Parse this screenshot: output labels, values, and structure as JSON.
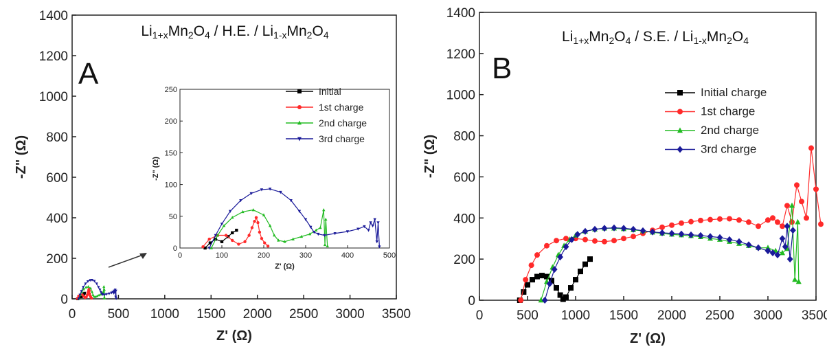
{
  "chart_data": [
    {
      "panel_label": "A",
      "type": "line",
      "title_parts": [
        "Li",
        "1+x",
        "Mn",
        "2",
        "O",
        "4",
        " / H.E. / Li",
        "1-x",
        "Mn",
        "2",
        "O",
        "4"
      ],
      "xlabel": "Z' (Ω)",
      "ylabel": "-Z\" (Ω)",
      "xlim": [
        0,
        3500
      ],
      "ylim": [
        0,
        1400
      ],
      "xticks": [
        "0",
        "500",
        "1000",
        "1500",
        "2000",
        "2500",
        "3000",
        "3500"
      ],
      "yticks": [
        "0",
        "200",
        "400",
        "600",
        "800",
        "1000",
        "1200",
        "1400"
      ],
      "series": [
        {
          "name": "Initial",
          "color": "#000000",
          "marker": "square",
          "x": [
            60,
            72,
            85,
            100,
            115,
            125,
            135
          ],
          "y": [
            0,
            8,
            14,
            10,
            18,
            24,
            28
          ]
        },
        {
          "name": "1st charge",
          "color": "#ff2a2a",
          "marker": "circle",
          "x": [
            55,
            70,
            90,
            110,
            125,
            140,
            155,
            165,
            172,
            178,
            182,
            186,
            190,
            195,
            202,
            210
          ],
          "y": [
            2,
            14,
            20,
            20,
            12,
            6,
            10,
            20,
            32,
            42,
            48,
            40,
            25,
            15,
            8,
            3
          ]
        },
        {
          "name": "2nd charge",
          "color": "#22bb22",
          "marker": "triangle",
          "x": [
            75,
            90,
            105,
            125,
            150,
            175,
            200,
            215,
            225,
            235,
            250,
            270,
            290,
            310,
            325,
            335,
            343,
            346,
            348,
            352
          ],
          "y": [
            0,
            20,
            35,
            48,
            57,
            60,
            52,
            35,
            20,
            12,
            10,
            14,
            18,
            22,
            28,
            32,
            60,
            5,
            45,
            3
          ]
        },
        {
          "name": "3rd charge",
          "color": "#1a1a99",
          "marker": "triangle-down",
          "x": [
            70,
            85,
            100,
            120,
            145,
            170,
            195,
            215,
            240,
            265,
            285,
            300,
            312,
            320,
            330,
            345,
            370,
            400,
            425,
            440,
            450,
            455,
            460,
            465,
            470,
            473,
            476
          ],
          "y": [
            0,
            20,
            38,
            58,
            75,
            86,
            92,
            93,
            88,
            75,
            58,
            45,
            33,
            25,
            22,
            20,
            23,
            26,
            30,
            34,
            28,
            40,
            35,
            45,
            10,
            40,
            2
          ]
        }
      ],
      "inset": {
        "xlim": [
          0,
          500
        ],
        "ylim": [
          0,
          250
        ],
        "xticks": [
          "0",
          "100",
          "200",
          "300",
          "400",
          "500"
        ],
        "yticks": [
          "0",
          "50",
          "100",
          "150",
          "200",
          "250"
        ],
        "xlabel": "Z' (Ω)",
        "ylabel": "-Z\" (Ω)"
      },
      "legend_position": "inside inset, top-right"
    },
    {
      "panel_label": "B",
      "type": "line",
      "title_parts": [
        "Li",
        "1+x",
        "Mn",
        "2",
        "O",
        "4",
        " / S.E. / Li",
        "1-x",
        "Mn",
        "2",
        "O",
        "4"
      ],
      "xlabel": "Z' (Ω)",
      "ylabel": "-Z\" (Ω)",
      "xlim": [
        0,
        3500
      ],
      "ylim": [
        0,
        1400
      ],
      "xticks": [
        "0",
        "500",
        "1000",
        "1500",
        "2000",
        "2500",
        "3000",
        "3500"
      ],
      "yticks": [
        "0",
        "200",
        "400",
        "600",
        "800",
        "1000",
        "1200",
        "1400"
      ],
      "series": [
        {
          "name": "Initial charge",
          "color": "#000000",
          "marker": "square",
          "x": [
            420,
            460,
            500,
            550,
            600,
            650,
            700,
            750,
            800,
            840,
            870,
            900,
            950,
            1000,
            1050,
            1100,
            1150
          ],
          "y": [
            0,
            40,
            75,
            100,
            115,
            120,
            115,
            95,
            60,
            25,
            5,
            15,
            60,
            100,
            140,
            175,
            200
          ]
        },
        {
          "name": "1st charge",
          "color": "#ff2a2a",
          "marker": "circle",
          "x": [
            430,
            480,
            540,
            600,
            700,
            800,
            900,
            1000,
            1100,
            1200,
            1300,
            1400,
            1500,
            1600,
            1700,
            1800,
            1900,
            2000,
            2100,
            2200,
            2300,
            2400,
            2500,
            2600,
            2700,
            2800,
            2900,
            3000,
            3050,
            3100,
            3150,
            3200,
            3250,
            3300,
            3350,
            3400,
            3450,
            3500,
            3550
          ],
          "y": [
            0,
            100,
            170,
            220,
            265,
            290,
            300,
            300,
            295,
            288,
            285,
            290,
            300,
            310,
            325,
            340,
            355,
            365,
            375,
            382,
            388,
            392,
            395,
            396,
            390,
            380,
            360,
            390,
            400,
            380,
            360,
            460,
            380,
            560,
            480,
            400,
            740,
            540,
            370
          ]
        },
        {
          "name": "2nd charge",
          "color": "#22bb22",
          "marker": "triangle",
          "x": [
            640,
            700,
            760,
            820,
            880,
            940,
            1000,
            1100,
            1200,
            1300,
            1400,
            1500,
            1600,
            1700,
            1800,
            1900,
            2000,
            2100,
            2200,
            2300,
            2400,
            2500,
            2600,
            2700,
            2800,
            2900,
            3000,
            3080,
            3150,
            3200,
            3250,
            3280,
            3310,
            3320
          ],
          "y": [
            0,
            90,
            160,
            220,
            265,
            295,
            315,
            335,
            345,
            350,
            350,
            347,
            342,
            337,
            330,
            325,
            320,
            317,
            313,
            308,
            300,
            295,
            285,
            275,
            265,
            255,
            255,
            240,
            230,
            250,
            460,
            100,
            380,
            90
          ]
        },
        {
          "name": "3rd charge",
          "color": "#1a1a99",
          "marker": "diamond",
          "x": [
            680,
            730,
            780,
            840,
            900,
            960,
            1020,
            1100,
            1200,
            1300,
            1400,
            1500,
            1600,
            1700,
            1800,
            1900,
            2000,
            2100,
            2200,
            2300,
            2400,
            2500,
            2600,
            2700,
            2800,
            2900,
            3000,
            3050,
            3100,
            3150,
            3180,
            3200,
            3230,
            3260
          ],
          "y": [
            0,
            80,
            150,
            210,
            260,
            295,
            320,
            335,
            345,
            350,
            352,
            350,
            345,
            338,
            332,
            328,
            325,
            322,
            318,
            315,
            310,
            305,
            295,
            285,
            270,
            255,
            240,
            230,
            220,
            300,
            260,
            360,
            200,
            340
          ]
        }
      ],
      "legend_position": "top-left of plot area"
    }
  ]
}
